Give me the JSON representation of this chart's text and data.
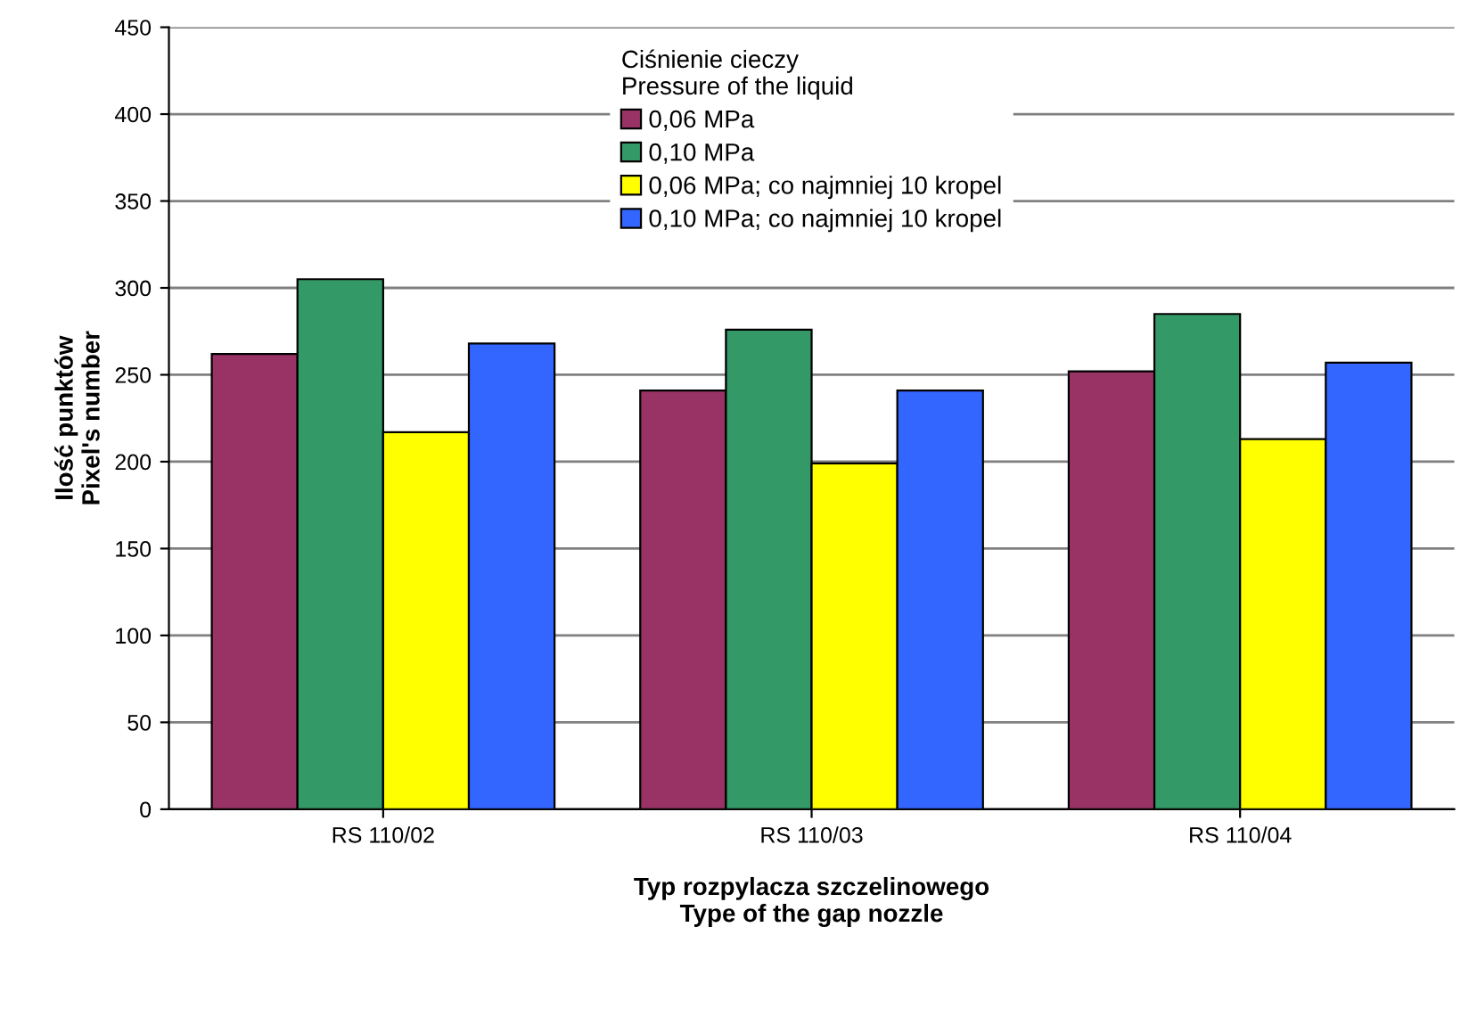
{
  "chart_data": {
    "type": "bar",
    "categories": [
      "RS 110/02",
      "RS 110/03",
      "RS 110/04"
    ],
    "xlabel": "Typ rozpylacza szczelinowego\nType of the gap nozzle",
    "ylabel": "Ilość punktów\nPixel's number",
    "legend_title": "Ciśnienie cieczy\nPressure of the liquid",
    "series": [
      {
        "name": "0,06 MPa",
        "color": "#993366",
        "values": [
          262,
          241,
          252
        ]
      },
      {
        "name": "0,10 MPa",
        "color": "#339966",
        "values": [
          305,
          276,
          285
        ]
      },
      {
        "name": "0,06 MPa; co najmniej 10 kropel",
        "color": "#ffff00",
        "values": [
          217,
          199,
          213
        ]
      },
      {
        "name": "0,10 MPa; co najmniej 10 kropel",
        "color": "#3366ff",
        "values": [
          268,
          241,
          257
        ]
      }
    ],
    "ylim": [
      0,
      450
    ],
    "yticks": [
      0,
      50,
      100,
      150,
      200,
      250,
      300,
      350,
      400,
      450
    ],
    "grid": "y",
    "legend": "top"
  }
}
